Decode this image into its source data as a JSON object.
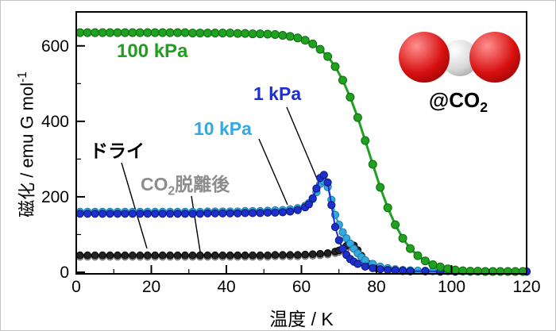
{
  "chart_data": {
    "type": "line",
    "title": "",
    "xlabel": "温度 / K",
    "ylabel_pre": "磁化 / emu G mol",
    "ylabel_sup": "-1",
    "xlim": [
      0,
      120
    ],
    "ylim": [
      0,
      690
    ],
    "xticks": [
      0,
      20,
      40,
      60,
      80,
      100,
      120
    ],
    "xticks_minor": [
      10,
      30,
      50,
      70,
      90,
      110
    ],
    "yticks": [
      0,
      200,
      400,
      600
    ],
    "yticks_minor": [
      100,
      300,
      500
    ],
    "grid": false,
    "legend_position": "inline-annotations",
    "series": [
      {
        "name": "co2-desorbed",
        "label": "CO2脱離後",
        "color": "#a8a8a8",
        "edge": "#666666",
        "line": "#909090",
        "r": 4.3,
        "lw": 2,
        "points": [
          [
            1,
            41
          ],
          [
            3,
            41
          ],
          [
            5,
            41
          ],
          [
            7,
            41
          ],
          [
            9,
            41
          ],
          [
            11,
            41
          ],
          [
            13,
            41
          ],
          [
            15,
            41
          ],
          [
            17,
            41
          ],
          [
            19,
            41
          ],
          [
            21,
            41
          ],
          [
            23,
            41
          ],
          [
            25,
            41
          ],
          [
            27,
            41
          ],
          [
            29,
            41
          ],
          [
            31,
            41
          ],
          [
            33,
            41
          ],
          [
            35,
            41
          ],
          [
            37,
            41
          ],
          [
            39,
            41
          ],
          [
            41,
            41
          ],
          [
            43,
            41
          ],
          [
            45,
            41
          ],
          [
            47,
            41
          ],
          [
            49,
            41
          ],
          [
            51,
            41
          ],
          [
            53,
            42
          ],
          [
            55,
            42
          ],
          [
            57,
            42
          ],
          [
            59,
            42
          ],
          [
            61,
            43
          ],
          [
            63,
            44
          ],
          [
            65,
            45
          ],
          [
            67,
            47
          ],
          [
            69,
            51
          ],
          [
            70,
            54
          ],
          [
            71,
            58
          ],
          [
            72,
            64
          ],
          [
            73,
            68
          ],
          [
            74,
            63
          ],
          [
            75,
            52
          ],
          [
            76,
            39
          ],
          [
            77,
            27
          ],
          [
            78,
            19
          ],
          [
            79,
            14
          ],
          [
            80,
            10
          ],
          [
            81,
            8
          ],
          [
            83,
            5
          ],
          [
            85,
            4
          ],
          [
            87,
            3
          ],
          [
            89,
            2
          ],
          [
            93,
            2
          ],
          [
            97,
            1
          ],
          [
            101,
            1
          ],
          [
            105,
            1
          ],
          [
            109,
            1
          ],
          [
            113,
            1
          ],
          [
            117,
            1
          ],
          [
            120,
            1
          ]
        ]
      },
      {
        "name": "dry",
        "label": "ドライ",
        "color": "#222222",
        "edge": "#000000",
        "line": "#1a1a1a",
        "r": 4.3,
        "lw": 2,
        "points": [
          [
            1,
            45
          ],
          [
            3,
            45
          ],
          [
            5,
            45
          ],
          [
            7,
            45
          ],
          [
            9,
            45
          ],
          [
            11,
            45
          ],
          [
            13,
            45
          ],
          [
            15,
            45
          ],
          [
            17,
            45
          ],
          [
            19,
            45
          ],
          [
            21,
            45
          ],
          [
            23,
            45
          ],
          [
            25,
            45
          ],
          [
            27,
            45
          ],
          [
            29,
            45
          ],
          [
            31,
            45
          ],
          [
            33,
            45
          ],
          [
            35,
            45
          ],
          [
            37,
            45
          ],
          [
            39,
            45
          ],
          [
            41,
            45
          ],
          [
            43,
            45
          ],
          [
            45,
            45
          ],
          [
            47,
            45
          ],
          [
            49,
            45
          ],
          [
            51,
            45
          ],
          [
            53,
            46
          ],
          [
            55,
            46
          ],
          [
            57,
            46
          ],
          [
            59,
            46
          ],
          [
            61,
            47
          ],
          [
            63,
            48
          ],
          [
            65,
            49
          ],
          [
            67,
            51
          ],
          [
            69,
            55
          ],
          [
            70,
            58
          ],
          [
            71,
            63
          ],
          [
            72,
            70
          ],
          [
            73,
            76
          ],
          [
            74,
            71
          ],
          [
            75,
            59
          ],
          [
            76,
            44
          ],
          [
            77,
            31
          ],
          [
            78,
            22
          ],
          [
            79,
            16
          ],
          [
            80,
            12
          ],
          [
            81,
            9
          ],
          [
            83,
            6
          ],
          [
            85,
            4
          ],
          [
            87,
            3
          ],
          [
            89,
            2
          ],
          [
            93,
            2
          ],
          [
            97,
            1
          ],
          [
            101,
            1
          ],
          [
            105,
            1
          ],
          [
            109,
            1
          ],
          [
            113,
            1
          ],
          [
            117,
            1
          ],
          [
            120,
            1
          ]
        ]
      },
      {
        "name": "10kPa",
        "label": "10 kPa",
        "color": "#35a8e0",
        "edge": "#1878a8",
        "line": "#35a8e0",
        "r": 4.6,
        "lw": 2.5,
        "points": [
          [
            1,
            160
          ],
          [
            3,
            160
          ],
          [
            5,
            160
          ],
          [
            7,
            160
          ],
          [
            9,
            160
          ],
          [
            11,
            160
          ],
          [
            13,
            160
          ],
          [
            15,
            160
          ],
          [
            17,
            160
          ],
          [
            19,
            160
          ],
          [
            21,
            160
          ],
          [
            23,
            160
          ],
          [
            25,
            160
          ],
          [
            27,
            160
          ],
          [
            29,
            160
          ],
          [
            31,
            160
          ],
          [
            33,
            160
          ],
          [
            35,
            161
          ],
          [
            37,
            161
          ],
          [
            39,
            161
          ],
          [
            41,
            161
          ],
          [
            43,
            161
          ],
          [
            45,
            162
          ],
          [
            47,
            162
          ],
          [
            49,
            162
          ],
          [
            51,
            163
          ],
          [
            53,
            164
          ],
          [
            55,
            165
          ],
          [
            57,
            167
          ],
          [
            59,
            170
          ],
          [
            61,
            176
          ],
          [
            62,
            183
          ],
          [
            63,
            194
          ],
          [
            64,
            212
          ],
          [
            65,
            234
          ],
          [
            66,
            241
          ],
          [
            67,
            226
          ],
          [
            68,
            192
          ],
          [
            69,
            152
          ],
          [
            70,
            126
          ],
          [
            71,
            106
          ],
          [
            72,
            90
          ],
          [
            73,
            76
          ],
          [
            74,
            62
          ],
          [
            75,
            50
          ],
          [
            76,
            40
          ],
          [
            77,
            32
          ],
          [
            79,
            22
          ],
          [
            81,
            15
          ],
          [
            83,
            11
          ],
          [
            85,
            8
          ],
          [
            87,
            6
          ],
          [
            89,
            5
          ],
          [
            91,
            4
          ],
          [
            93,
            4
          ],
          [
            95,
            3
          ],
          [
            99,
            3
          ],
          [
            103,
            2
          ],
          [
            107,
            2
          ],
          [
            111,
            2
          ],
          [
            115,
            2
          ],
          [
            119,
            2
          ]
        ]
      },
      {
        "name": "1kPa",
        "label": "1 kPa",
        "color": "#1e2fd0",
        "edge": "#0c1670",
        "line": "#1e2fd0",
        "r": 4.6,
        "lw": 2,
        "points": [
          [
            1,
            155
          ],
          [
            3,
            155
          ],
          [
            5,
            155
          ],
          [
            7,
            155
          ],
          [
            9,
            155
          ],
          [
            11,
            155
          ],
          [
            13,
            155
          ],
          [
            15,
            155
          ],
          [
            17,
            155
          ],
          [
            19,
            155
          ],
          [
            21,
            155
          ],
          [
            23,
            155
          ],
          [
            25,
            155
          ],
          [
            27,
            155
          ],
          [
            29,
            155
          ],
          [
            31,
            155
          ],
          [
            33,
            155
          ],
          [
            35,
            156
          ],
          [
            37,
            156
          ],
          [
            39,
            156
          ],
          [
            41,
            156
          ],
          [
            43,
            156
          ],
          [
            45,
            157
          ],
          [
            47,
            157
          ],
          [
            49,
            157
          ],
          [
            51,
            158
          ],
          [
            53,
            158
          ],
          [
            55,
            159
          ],
          [
            57,
            161
          ],
          [
            59,
            165
          ],
          [
            61,
            172
          ],
          [
            62,
            180
          ],
          [
            63,
            196
          ],
          [
            64,
            222
          ],
          [
            65,
            250
          ],
          [
            66,
            258
          ],
          [
            67,
            238
          ],
          [
            68,
            178
          ],
          [
            69,
            120
          ],
          [
            70,
            85
          ],
          [
            71,
            62
          ],
          [
            72,
            46
          ],
          [
            73,
            35
          ],
          [
            74,
            28
          ],
          [
            75,
            22
          ],
          [
            77,
            15
          ],
          [
            79,
            11
          ],
          [
            81,
            8
          ],
          [
            83,
            6
          ],
          [
            85,
            5
          ],
          [
            87,
            4
          ],
          [
            89,
            3
          ],
          [
            93,
            3
          ],
          [
            97,
            2
          ],
          [
            101,
            2
          ],
          [
            105,
            2
          ],
          [
            109,
            2
          ],
          [
            113,
            2
          ],
          [
            117,
            2
          ],
          [
            120,
            2
          ]
        ]
      },
      {
        "name": "100kPa",
        "label": "100 kPa",
        "color": "#21a121",
        "edge": "#0b6b0b",
        "line": "#21a121",
        "r": 5,
        "lw": 3,
        "points": [
          [
            1,
            635
          ],
          [
            3,
            635
          ],
          [
            5,
            635
          ],
          [
            7,
            635
          ],
          [
            9,
            635
          ],
          [
            11,
            635
          ],
          [
            13,
            635
          ],
          [
            15,
            635
          ],
          [
            17,
            635
          ],
          [
            19,
            635
          ],
          [
            21,
            635
          ],
          [
            23,
            635
          ],
          [
            25,
            635
          ],
          [
            27,
            635
          ],
          [
            29,
            635
          ],
          [
            31,
            634
          ],
          [
            33,
            634
          ],
          [
            35,
            634
          ],
          [
            37,
            634
          ],
          [
            39,
            634
          ],
          [
            41,
            634
          ],
          [
            43,
            633
          ],
          [
            45,
            633
          ],
          [
            47,
            632
          ],
          [
            49,
            632
          ],
          [
            51,
            631
          ],
          [
            53,
            630
          ],
          [
            55,
            628
          ],
          [
            57,
            625
          ],
          [
            59,
            621
          ],
          [
            61,
            615
          ],
          [
            63,
            605
          ],
          [
            65,
            591
          ],
          [
            67,
            572
          ],
          [
            69,
            545
          ],
          [
            71,
            509
          ],
          [
            73,
            464
          ],
          [
            75,
            410
          ],
          [
            77,
            349
          ],
          [
            79,
            286
          ],
          [
            81,
            225
          ],
          [
            83,
            171
          ],
          [
            85,
            126
          ],
          [
            87,
            90
          ],
          [
            89,
            63
          ],
          [
            91,
            44
          ],
          [
            93,
            30
          ],
          [
            95,
            20
          ],
          [
            97,
            14
          ],
          [
            99,
            9
          ],
          [
            101,
            6
          ],
          [
            103,
            4
          ],
          [
            105,
            3
          ],
          [
            107,
            3
          ],
          [
            109,
            2
          ],
          [
            111,
            2
          ],
          [
            113,
            2
          ],
          [
            115,
            2
          ],
          [
            117,
            2
          ],
          [
            119,
            2
          ]
        ]
      }
    ],
    "annotations": [
      {
        "id": "p100",
        "text": "100 kPa",
        "color": "#1f9e1f"
      },
      {
        "id": "p1",
        "text": "1 kPa",
        "color": "#1e2fd0"
      },
      {
        "id": "p10",
        "text": "10 kPa",
        "color": "#35a8e0"
      },
      {
        "id": "dry",
        "text": "ドライ",
        "color": "#000000"
      },
      {
        "id": "desorbed",
        "pre": "CO",
        "sub": "2",
        "post": "脱離後",
        "color": "#8c8c8c"
      },
      {
        "id": "at-co2",
        "pre": "@CO",
        "sub": "2",
        "post": "",
        "color": "#000000"
      }
    ],
    "molecule": {
      "atoms": [
        {
          "element": "O",
          "hi": "#ff9090",
          "mid": "#d81010",
          "lo": "#7c0000"
        },
        {
          "element": "C",
          "hi": "#ffffff",
          "mid": "#d8d8d8",
          "lo": "#8f8f8f"
        },
        {
          "element": "O",
          "hi": "#ff9090",
          "mid": "#d81010",
          "lo": "#7c0000"
        }
      ]
    }
  }
}
